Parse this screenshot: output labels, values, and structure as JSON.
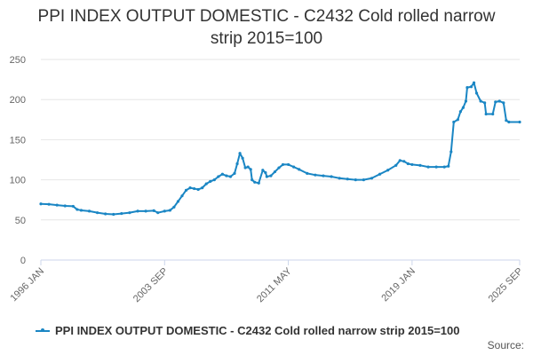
{
  "page_title": {
    "line1": "PPI INDEX OUTPUT DOMESTIC - C2432 Cold rolled narrow",
    "line2": "strip 2015=100"
  },
  "source_label": "Source:",
  "colors": {
    "series": "#1a86c4",
    "grid": "#e6e6e6",
    "axis_text": "#666666"
  },
  "chart_data": {
    "type": "line",
    "title": "PPI INDEX OUTPUT DOMESTIC - C2432 Cold rolled narrow strip 2015=100",
    "xlabel": "",
    "ylabel": "",
    "ylim": [
      0,
      250
    ],
    "yticks": [
      0,
      50,
      100,
      150,
      200,
      250
    ],
    "xlim": [
      "1996-01",
      "2025-09"
    ],
    "xtick_labels": [
      "1996 JAN",
      "2003 SEP",
      "2011 MAY",
      "2019 JAN",
      "2025 SEP"
    ],
    "grid": true,
    "legend": "bottom",
    "series": [
      {
        "name": "PPI INDEX OUTPUT DOMESTIC - C2432 Cold rolled narrow strip 2015=100",
        "points": [
          [
            "1996-01",
            70
          ],
          [
            "1996-07",
            69.5
          ],
          [
            "1997-01",
            68.5
          ],
          [
            "1997-07",
            67.5
          ],
          [
            "1998-01",
            67
          ],
          [
            "1998-04",
            63
          ],
          [
            "1998-07",
            62
          ],
          [
            "1999-01",
            61
          ],
          [
            "1999-07",
            59
          ],
          [
            "2000-01",
            57.5
          ],
          [
            "2000-07",
            57
          ],
          [
            "2001-01",
            58
          ],
          [
            "2001-07",
            59
          ],
          [
            "2002-01",
            61
          ],
          [
            "2002-07",
            61
          ],
          [
            "2003-01",
            61.5
          ],
          [
            "2003-04",
            59
          ],
          [
            "2003-09",
            61
          ],
          [
            "2004-01",
            62
          ],
          [
            "2004-04",
            66
          ],
          [
            "2004-07",
            73
          ],
          [
            "2004-10",
            80
          ],
          [
            "2005-01",
            87
          ],
          [
            "2005-04",
            90
          ],
          [
            "2005-07",
            89
          ],
          [
            "2005-10",
            88
          ],
          [
            "2006-01",
            90
          ],
          [
            "2006-04",
            95
          ],
          [
            "2006-07",
            98
          ],
          [
            "2006-10",
            100
          ],
          [
            "2007-01",
            104
          ],
          [
            "2007-04",
            107
          ],
          [
            "2007-07",
            105
          ],
          [
            "2007-10",
            104
          ],
          [
            "2008-01",
            108
          ],
          [
            "2008-03",
            120
          ],
          [
            "2008-05",
            133
          ],
          [
            "2008-07",
            127
          ],
          [
            "2008-09",
            115
          ],
          [
            "2008-11",
            116
          ],
          [
            "2009-01",
            113
          ],
          [
            "2009-02",
            100
          ],
          [
            "2009-04",
            97
          ],
          [
            "2009-07",
            96
          ],
          [
            "2009-10",
            112
          ],
          [
            "2009-12",
            109
          ],
          [
            "2010-01",
            104
          ],
          [
            "2010-04",
            105
          ],
          [
            "2010-07",
            110
          ],
          [
            "2010-10",
            115
          ],
          [
            "2011-01",
            119
          ],
          [
            "2011-05",
            119
          ],
          [
            "2011-09",
            116
          ],
          [
            "2012-01",
            113
          ],
          [
            "2012-07",
            108
          ],
          [
            "2013-01",
            106
          ],
          [
            "2013-07",
            105
          ],
          [
            "2014-01",
            104
          ],
          [
            "2014-07",
            102
          ],
          [
            "2015-01",
            101
          ],
          [
            "2015-07",
            100
          ],
          [
            "2016-01",
            100
          ],
          [
            "2016-07",
            102
          ],
          [
            "2017-01",
            107
          ],
          [
            "2017-07",
            112
          ],
          [
            "2018-01",
            118
          ],
          [
            "2018-04",
            124
          ],
          [
            "2018-07",
            123
          ],
          [
            "2018-10",
            120
          ],
          [
            "2019-01",
            119
          ],
          [
            "2019-07",
            118
          ],
          [
            "2020-01",
            116
          ],
          [
            "2020-07",
            116
          ],
          [
            "2021-01",
            116
          ],
          [
            "2021-04",
            117
          ],
          [
            "2021-06",
            135
          ],
          [
            "2021-08",
            172
          ],
          [
            "2021-11",
            175
          ],
          [
            "2022-01",
            185
          ],
          [
            "2022-03",
            190
          ],
          [
            "2022-05",
            198
          ],
          [
            "2022-06",
            215
          ],
          [
            "2022-09",
            216
          ],
          [
            "2022-11",
            221
          ],
          [
            "2023-01",
            208
          ],
          [
            "2023-04",
            198
          ],
          [
            "2023-07",
            196
          ],
          [
            "2023-08",
            182
          ],
          [
            "2024-01",
            182
          ],
          [
            "2024-03",
            197
          ],
          [
            "2024-06",
            198
          ],
          [
            "2024-09",
            196
          ],
          [
            "2024-11",
            174
          ],
          [
            "2025-01",
            172
          ],
          [
            "2025-09",
            172
          ]
        ]
      }
    ]
  }
}
